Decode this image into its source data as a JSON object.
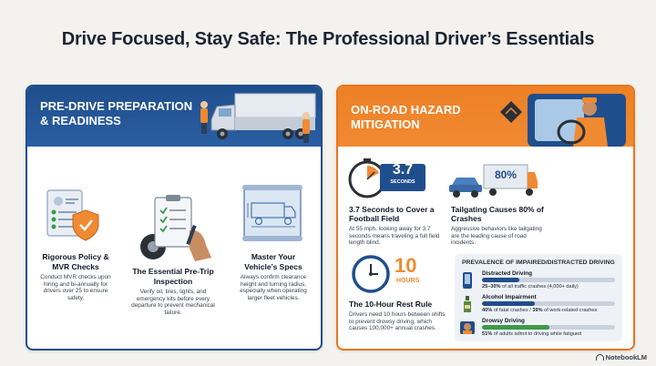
{
  "title": "Drive Focused, Stay Safe: The Professional Driver’s Essentials",
  "left_panel": {
    "header": "Pre-Drive Preparation & Readiness",
    "items": [
      {
        "title": "Rigorous Policy & MVR Checks",
        "text": "Conduct MVR checks upon hiring and bi-annually for drivers over 25 to ensure safety."
      },
      {
        "title": "The Essential Pre-Trip Inspection",
        "text": "Verify oil, tires, lights, and emergency kits before every departure to prevent mechanical failure."
      },
      {
        "title": "Master Your Vehicle’s Specs",
        "text": "Always confirm clearance height and turning radius, especially when operating larger fleet vehicles."
      }
    ]
  },
  "right_panel": {
    "header": "On-Road Hazard Mitigation",
    "stopwatch": {
      "value": "3.7",
      "unit": "SECONDS"
    },
    "football": {
      "title": "3.7 Seconds to Cover a Football Field",
      "text": "At 55 mph, looking away for 3.7 seconds means traveling a full field length blind."
    },
    "tailgating": {
      "badge": "80%",
      "title": "Tailgating Causes 80% of Crashes",
      "text": "Aggressive behaviors like tailgating are the leading cause of road incidents."
    },
    "rest": {
      "value": "10",
      "unit": "HOURS",
      "title": "The 10-Hour Rest Rule",
      "text": "Drivers need 10 hours between shifts to prevent drowsy driving, which causes 100,000+ annual crashes."
    },
    "prevalence": {
      "title": "PREVALENCE OF IMPAIRED/DISTRACTED DRIVING",
      "rows": [
        {
          "label": "Distracted Driving",
          "fraction": 0.28,
          "color": "#1f4e8c",
          "icon": "phone-icon",
          "note_bold": "25–30%",
          "note_rest": " of all traffic crashes (4,000+ daily)"
        },
        {
          "label": "Alcohol Impairment",
          "fraction": 0.4,
          "color": "#1f4e8c",
          "icon": "bottle-icon",
          "note_bold": "40%",
          "note_rest": " of fatal crashes / ",
          "note_bold2": "39%",
          "note_rest2": " of work-related crashes"
        },
        {
          "label": "Drowsy Driving",
          "fraction": 0.51,
          "color": "#3a9a4a",
          "icon": "sleepy-driver-icon",
          "note_bold": "51%",
          "note_rest": " of adults admit to driving while fatigued"
        }
      ]
    }
  },
  "brand": "NotebookLM"
}
